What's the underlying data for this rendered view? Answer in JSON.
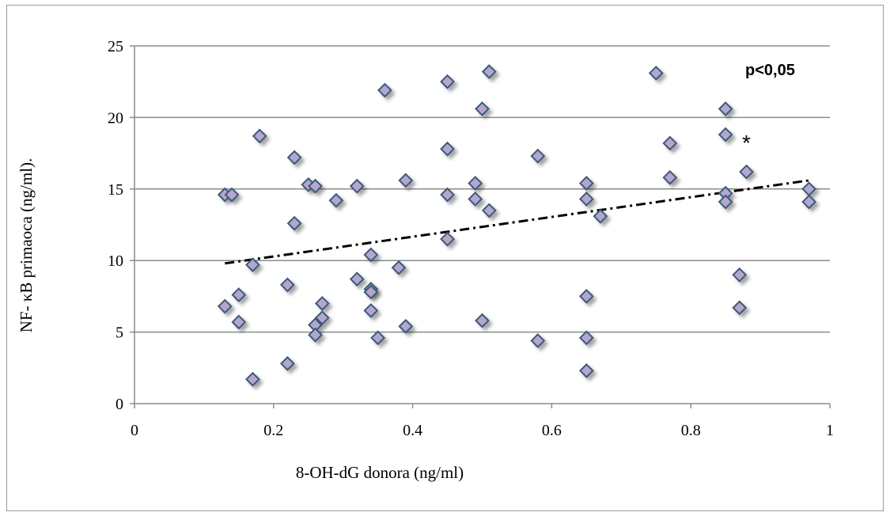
{
  "chart_data": {
    "type": "scatter",
    "xlabel": "8-OH-dG  donora (ng/ml)",
    "ylabel": "NF- κB primaoca (ng/ml).",
    "xlim": [
      0,
      1
    ],
    "ylim": [
      0,
      25
    ],
    "xticks": [
      "0",
      "0.2",
      "0.4",
      "0.6",
      "0.8",
      "1"
    ],
    "yticks": [
      "0",
      "5",
      "10",
      "15",
      "20",
      "25"
    ],
    "xtick_values": [
      0,
      0.2,
      0.4,
      0.6,
      0.8,
      1
    ],
    "ytick_values": [
      0,
      5,
      10,
      15,
      20,
      25
    ],
    "grid": "horizontal",
    "legend": "none",
    "marker_color": "#b4a6cf",
    "marker_edge_color": "#3b5a78",
    "series": [
      {
        "points": [
          [
            0.13,
            14.6
          ],
          [
            0.14,
            14.6
          ],
          [
            0.13,
            6.8
          ],
          [
            0.15,
            7.6
          ],
          [
            0.15,
            5.7
          ],
          [
            0.17,
            9.7
          ],
          [
            0.17,
            1.7
          ],
          [
            0.18,
            18.7
          ],
          [
            0.22,
            8.3
          ],
          [
            0.22,
            2.8
          ],
          [
            0.23,
            17.2
          ],
          [
            0.23,
            12.6
          ],
          [
            0.25,
            15.3
          ],
          [
            0.26,
            15.2
          ],
          [
            0.26,
            5.5
          ],
          [
            0.26,
            4.8
          ],
          [
            0.27,
            7.0
          ],
          [
            0.27,
            6.0
          ],
          [
            0.29,
            14.2
          ],
          [
            0.32,
            15.2
          ],
          [
            0.32,
            8.7
          ],
          [
            0.34,
            10.4
          ],
          [
            0.34,
            8.0
          ],
          [
            0.34,
            7.8
          ],
          [
            0.34,
            6.5
          ],
          [
            0.35,
            4.6
          ],
          [
            0.36,
            21.9
          ],
          [
            0.38,
            9.5
          ],
          [
            0.39,
            15.6
          ],
          [
            0.39,
            5.4
          ],
          [
            0.45,
            22.5
          ],
          [
            0.45,
            17.8
          ],
          [
            0.45,
            14.6
          ],
          [
            0.45,
            11.5
          ],
          [
            0.49,
            15.4
          ],
          [
            0.49,
            14.3
          ],
          [
            0.5,
            20.6
          ],
          [
            0.5,
            5.8
          ],
          [
            0.51,
            23.2
          ],
          [
            0.51,
            13.5
          ],
          [
            0.58,
            17.3
          ],
          [
            0.58,
            4.4
          ],
          [
            0.65,
            15.4
          ],
          [
            0.65,
            14.3
          ],
          [
            0.65,
            7.5
          ],
          [
            0.65,
            4.6
          ],
          [
            0.65,
            2.3
          ],
          [
            0.67,
            13.1
          ],
          [
            0.75,
            23.1
          ],
          [
            0.77,
            18.2
          ],
          [
            0.77,
            15.8
          ],
          [
            0.85,
            20.6
          ],
          [
            0.85,
            18.8
          ],
          [
            0.85,
            14.7
          ],
          [
            0.85,
            14.1
          ],
          [
            0.87,
            9.0
          ],
          [
            0.87,
            6.7
          ],
          [
            0.88,
            16.2
          ],
          [
            0.97,
            15.0
          ],
          [
            0.97,
            14.1
          ]
        ]
      }
    ],
    "trendline": {
      "x": [
        0.13,
        0.97
      ],
      "y": [
        9.8,
        15.6
      ],
      "style": "dash-dot"
    },
    "annotations": {
      "pvalue": "p<0,05",
      "star": "*"
    }
  }
}
